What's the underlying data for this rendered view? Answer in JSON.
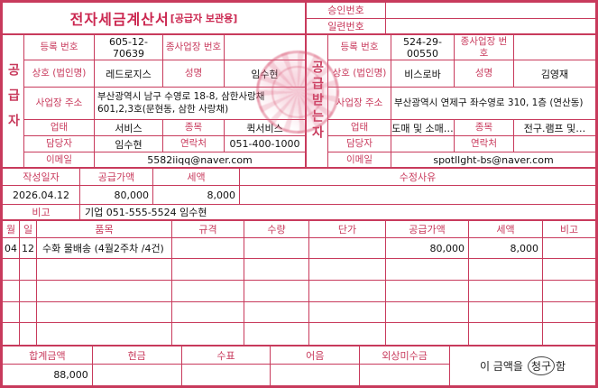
{
  "header": {
    "title": "전자세금계산서",
    "title_suffix": "[공급자 보관용]",
    "approval_label": "승인번호",
    "approval_value": "",
    "serial_label": "일련번호",
    "serial_value": ""
  },
  "supplier": {
    "party_label": "공급자",
    "reg_label": "등록 번호",
    "reg_no": "605-12-70639",
    "subbiz_label": "종사업장 번호",
    "subbiz_no": "",
    "company_label": "상호 (법인명)",
    "company": "레드로지스",
    "name_label": "성명",
    "name": "임수현",
    "addr_label": "사업장 주소",
    "addr": "부산광역시 남구 수영로 18-8, 삼한사랑채 601,2,3호(문현동, 삼한 사랑채)",
    "biztype_label": "업태",
    "biztype": "서비스",
    "item_label": "종목",
    "item": "퀵서비스",
    "contact_label": "담당자",
    "contact": "임수현",
    "phone_label": "연락처",
    "phone": "051-400-1000",
    "email_label": "이메일",
    "email": "5582iiqq@naver.com"
  },
  "buyer": {
    "party_label": "공급받는자",
    "reg_label": "등록 번호",
    "reg_no": "524-29-00550",
    "subbiz_label": "종사업장 번호",
    "subbiz_no": "",
    "company_label": "상호 (법인명)",
    "company": "비스로바",
    "name_label": "성명",
    "name": "김영재",
    "addr_label": "사업장 주소",
    "addr": "부산광역시 연제구 좌수영로 310, 1층 (연산동)",
    "biztype_label": "업태",
    "biztype": "도매 및 소매…",
    "item_label": "종목",
    "item": "전구.램프 및…",
    "contact_label": "담당자",
    "contact": "",
    "phone_label": "연락처",
    "phone": "",
    "email_label": "이메일",
    "email": "spotllght-bs@naver.com"
  },
  "summary": {
    "date_label": "작성일자",
    "date": "2026.04.12",
    "supply_label": "공급가액",
    "supply": "80,000",
    "tax_label": "세액",
    "tax": "8,000",
    "reason_label": "수정사유",
    "reason": "",
    "note_label": "비고",
    "note": "기업 051-555-5524 임수현"
  },
  "items": {
    "headers": [
      "월",
      "일",
      "품목",
      "규격",
      "수량",
      "단가",
      "공급가액",
      "세액",
      "비고"
    ],
    "rows": [
      [
        "04",
        "12",
        "수화 물배송 (4월2주차 /4건)",
        "",
        "",
        "",
        "80,000",
        "8,000",
        ""
      ],
      [
        "",
        "",
        "",
        "",
        "",
        "",
        "",
        "",
        ""
      ],
      [
        "",
        "",
        "",
        "",
        "",
        "",
        "",
        "",
        ""
      ],
      [
        "",
        "",
        "",
        "",
        "",
        "",
        "",
        "",
        ""
      ],
      [
        "",
        "",
        "",
        "",
        "",
        "",
        "",
        "",
        ""
      ]
    ]
  },
  "footer": {
    "total_label": "합계금액",
    "total": "88,000",
    "cash_label": "현금",
    "cash": "",
    "check_label": "수표",
    "check": "",
    "bill_label": "어음",
    "bill": "",
    "credit_label": "외상미수금",
    "credit": "",
    "statement_prefix": "이 금액을",
    "statement_circled": "청구",
    "statement_suffix": "함"
  }
}
